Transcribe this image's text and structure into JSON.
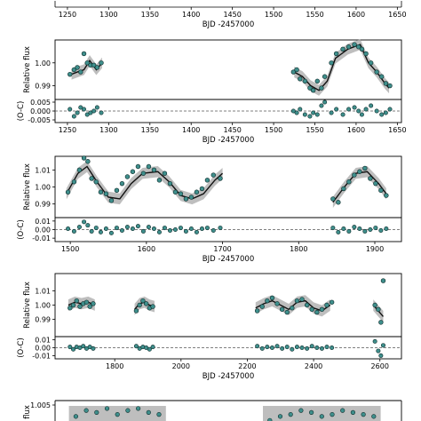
{
  "chart_data": [
    {
      "type": "scatter",
      "role": "top-axis-strip",
      "xlabel": "BJD -2457000",
      "xticks": [
        1250,
        1300,
        1350,
        1400,
        1450,
        1500,
        1550,
        1600,
        1650
      ],
      "xlim": [
        1235,
        1655
      ]
    },
    {
      "type": "scatter",
      "xlabel": "BJD -2457000",
      "ylabel": "Relative flux",
      "residual_ylabel": "(O-C)",
      "xlim": [
        1235,
        1655
      ],
      "ylim": [
        0.984,
        1.01
      ],
      "yticks": [
        0.99,
        1.0
      ],
      "residual_ylim": [
        -0.0065,
        0.0065
      ],
      "residual_yticks": [
        0.005,
        0.0,
        -0.005
      ],
      "residual_yticklabels": [
        "0.005",
        "0.000",
        "-0.005"
      ],
      "xticks": [
        1250,
        1300,
        1350,
        1400,
        1450,
        1500,
        1550,
        1600,
        1650
      ],
      "model_x": [
        1255,
        1262,
        1270,
        1277,
        1285,
        1292,
        1525,
        1535,
        1545,
        1555,
        1565,
        1575,
        1590,
        1605,
        1615,
        1625,
        1635,
        1640
      ],
      "model_y": [
        0.995,
        0.996,
        0.997,
        1.001,
        0.997,
        1.0,
        0.996,
        0.994,
        0.99,
        0.988,
        0.992,
        1.002,
        1.006,
        1.008,
        1.0,
        0.996,
        0.991,
        0.989
      ],
      "points_x": [
        1253,
        1258,
        1262,
        1266,
        1270,
        1274,
        1278,
        1282,
        1286,
        1291,
        1524,
        1528,
        1532,
        1538,
        1544,
        1548,
        1553,
        1558,
        1562,
        1570,
        1576,
        1584,
        1591,
        1598,
        1603,
        1607,
        1612,
        1618,
        1625,
        1631,
        1636,
        1641
      ],
      "points_y": [
        0.995,
        0.997,
        0.998,
        0.996,
        1.004,
        1.0,
        0.999,
        0.999,
        0.998,
        1.0,
        0.996,
        0.997,
        0.993,
        0.992,
        0.989,
        0.988,
        0.992,
        0.989,
        0.994,
        1.0,
        1.004,
        1.006,
        1.007,
        1.008,
        1.007,
        1.006,
        1.004,
        1.0,
        0.996,
        0.994,
        0.991,
        0.99
      ],
      "residuals": [
        0.001,
        -0.003,
        -0.001,
        0.002,
        0.001,
        -0.002,
        -0.001,
        0.0,
        0.002,
        -0.001,
        0.0,
        -0.001,
        0.001,
        -0.002,
        -0.003,
        -0.001,
        -0.002,
        0.003,
        0.005,
        -0.001,
        0.001,
        -0.002,
        0.001,
        0.002,
        0.0,
        -0.002,
        0.001,
        0.003,
        0.0,
        -0.002,
        -0.001,
        0.001
      ]
    },
    {
      "type": "scatter",
      "xlabel": "BJD -2457000",
      "ylabel": "Relative flux",
      "residual_ylabel": "(O-C)",
      "xlim": [
        1480,
        1935
      ],
      "ylim": [
        0.982,
        1.018
      ],
      "yticks": [
        0.99,
        1.0,
        1.01
      ],
      "residual_ylim": [
        -0.014,
        0.014
      ],
      "residual_yticks": [
        0.01,
        0.0,
        -0.01
      ],
      "residual_yticklabels": [
        "0.01",
        "0.00",
        "-0.01"
      ],
      "xticks": [
        1500,
        1600,
        1700,
        1800,
        1900
      ],
      "model_x": [
        1495,
        1510,
        1522,
        1535,
        1550,
        1565,
        1580,
        1595,
        1615,
        1630,
        1645,
        1660,
        1675,
        1690,
        1700,
        1845,
        1860,
        1875,
        1890,
        1905,
        1915
      ],
      "model_y": [
        0.996,
        1.008,
        1.012,
        1.003,
        0.994,
        0.993,
        1.002,
        1.008,
        1.009,
        1.003,
        0.995,
        0.993,
        0.996,
        1.004,
        1.008,
        0.991,
        1.0,
        1.008,
        1.009,
        1.002,
        0.996
      ],
      "points_x": [
        1497,
        1505,
        1512,
        1518,
        1523,
        1528,
        1534,
        1540,
        1547,
        1554,
        1561,
        1568,
        1575,
        1582,
        1589,
        1596,
        1603,
        1610,
        1617,
        1624,
        1631,
        1638,
        1645,
        1652,
        1659,
        1666,
        1673,
        1680,
        1688,
        1697,
        1845,
        1852,
        1859,
        1866,
        1873,
        1880,
        1887,
        1894,
        1901,
        1908,
        1915
      ],
      "points_y": [
        0.997,
        1.003,
        1.01,
        1.017,
        1.015,
        1.005,
        1.003,
        0.997,
        0.996,
        0.992,
        0.998,
        1.002,
        1.006,
        1.009,
        1.012,
        1.008,
        1.012,
        1.01,
        1.004,
        1.008,
        1.002,
        0.997,
        0.996,
        0.993,
        0.994,
        0.997,
        0.999,
        1.004,
        1.007,
        1.005,
        0.993,
        0.991,
        0.999,
        1.003,
        1.007,
        1.009,
        1.011,
        1.005,
        1.002,
        0.998,
        0.995
      ],
      "residuals": [
        0.001,
        -0.002,
        0.003,
        0.009,
        0.005,
        -0.002,
        0.002,
        -0.003,
        0.001,
        -0.004,
        0.002,
        -0.001,
        0.003,
        0.001,
        0.004,
        -0.002,
        0.003,
        0.001,
        -0.003,
        0.002,
        -0.001,
        0.0,
        0.002,
        -0.002,
        0.001,
        -0.003,
        0.001,
        0.002,
        -0.001,
        0.002,
        0.002,
        -0.003,
        0.001,
        -0.002,
        0.003,
        0.001,
        -0.002,
        0.0,
        0.002,
        -0.001,
        0.001
      ]
    },
    {
      "type": "scatter",
      "xlabel": "BJD -2457000",
      "ylabel": "Relative flux",
      "residual_ylabel": "(O-C)",
      "xlim": [
        1620,
        2665
      ],
      "ylim": [
        0.978,
        1.022
      ],
      "yticks": [
        0.99,
        1.0,
        1.01
      ],
      "residual_ylim": [
        -0.014,
        0.014
      ],
      "residual_yticks": [
        0.01,
        0.0,
        -0.01
      ],
      "residual_yticklabels": [
        "0.01",
        "0.00",
        "-0.01"
      ],
      "xticks": [
        1600,
        1800,
        2000,
        2200,
        2400,
        2600
      ],
      "model_x": [
        1660,
        1680,
        1700,
        1720,
        1740,
        1860,
        1875,
        1890,
        1905,
        1920,
        2225,
        2250,
        2275,
        2300,
        2325,
        2350,
        2375,
        2400,
        2425,
        2450,
        2580,
        2595,
        2610
      ],
      "model_y": [
        1.0,
        1.002,
        1.001,
        1.002,
        1.0,
        0.997,
        1.001,
        1.002,
        1.0,
        0.999,
        0.998,
        1.001,
        1.003,
        1.0,
        0.997,
        1.002,
        1.003,
        0.998,
        0.996,
        1.0,
        1.0,
        0.996,
        0.992
      ],
      "points_x": [
        1665,
        1675,
        1685,
        1695,
        1705,
        1715,
        1725,
        1735,
        1865,
        1875,
        1885,
        1895,
        1905,
        1915,
        2230,
        2245,
        2260,
        2275,
        2290,
        2305,
        2320,
        2335,
        2350,
        2365,
        2380,
        2395,
        2410,
        2425,
        2440,
        2455,
        2585,
        2595,
        2603,
        2610
      ],
      "points_y": [
        0.998,
        1.0,
        1.003,
        0.999,
        1.001,
        1.002,
        0.999,
        1.001,
        0.996,
        1.0,
        1.003,
        1.001,
        0.998,
        0.999,
        0.996,
        0.999,
        1.003,
        1.005,
        1.001,
        0.997,
        0.995,
        0.998,
        1.003,
        1.004,
        1.0,
        0.997,
        0.995,
        0.997,
        1.0,
        1.002,
        1.0,
        0.997,
        0.988,
        1.017
      ],
      "residuals": [
        0.001,
        -0.002,
        0.001,
        0.0,
        0.002,
        -0.001,
        0.001,
        -0.001,
        0.002,
        -0.001,
        0.001,
        0.0,
        -0.002,
        0.001,
        0.002,
        -0.001,
        0.001,
        0.0,
        0.002,
        -0.001,
        0.001,
        -0.002,
        0.001,
        0.0,
        -0.001,
        0.002,
        0.0,
        -0.001,
        0.001,
        0.0,
        0.008,
        -0.004,
        -0.01,
        0.003
      ]
    },
    {
      "type": "scatter",
      "role": "bottom-partial-panel",
      "ylabel": "flux",
      "ytick_top": "1.005",
      "xlim": [
        0,
        10
      ],
      "ylim": [
        0.994,
        1.007
      ],
      "points_x": [
        0.6,
        0.9,
        1.2,
        1.5,
        1.8,
        2.1,
        2.4,
        2.7,
        3.0,
        6.2,
        6.5,
        6.8,
        7.1,
        7.4,
        7.7,
        8.0,
        8.3,
        8.6,
        8.9,
        9.2
      ],
      "points_y": [
        0.999,
        1.002,
        1.001,
        1.003,
        1.0,
        1.002,
        1.003,
        1.001,
        1.0,
        0.997,
        0.999,
        1.0,
        1.002,
        1.001,
        0.999,
        1.0,
        1.002,
        1.001,
        1.0,
        0.999
      ]
    }
  ]
}
